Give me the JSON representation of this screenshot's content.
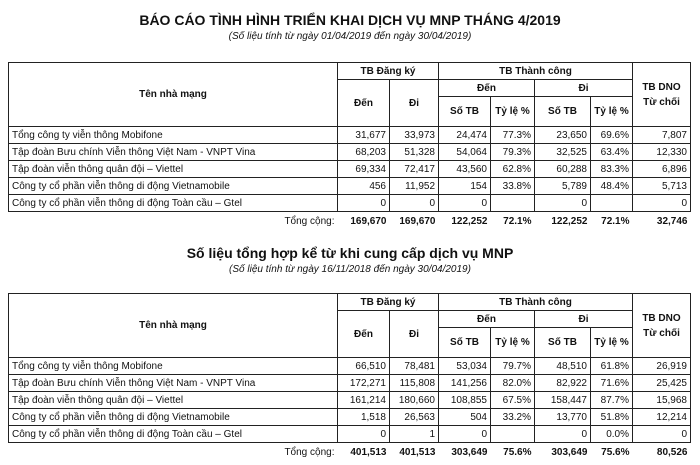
{
  "header_labels": {
    "name": "Tên nhà mạng",
    "registered": "TB Đăng ký",
    "success": "TB Thành công",
    "in": "Đến",
    "out": "Đi",
    "count": "Số TB",
    "rate": "Tỷ lệ %",
    "dno": "TB DNO Từ chối",
    "total": "Tổng cộng:"
  },
  "reports": [
    {
      "title": "BÁO CÁO TÌNH HÌNH TRIỂN KHAI DỊCH VỤ MNP THÁNG 4/2019",
      "subtitle": "(Số liệu tính từ ngày 01/04/2019 đến ngày 30/04/2019)",
      "rows": [
        [
          "Tổng công ty viễn thông Mobifone",
          "31,677",
          "33,973",
          "24,474",
          "77.3%",
          "23,650",
          "69.6%",
          "7,807"
        ],
        [
          "Tập đoàn Bưu chính Viễn thông Việt Nam - VNPT Vina",
          "68,203",
          "51,328",
          "54,064",
          "79.3%",
          "32,525",
          "63.4%",
          "12,330"
        ],
        [
          "Tập đoàn viễn thông quân đội – Viettel",
          "69,334",
          "72,417",
          "43,560",
          "62.8%",
          "60,288",
          "83.3%",
          "6,896"
        ],
        [
          "Công ty cổ phần viễn thông di động Vietnamobile",
          "456",
          "11,952",
          "154",
          "33.8%",
          "5,789",
          "48.4%",
          "5,713"
        ],
        [
          "Công ty cổ phần viễn thông di động Toàn cầu – Gtel",
          "0",
          "0",
          "0",
          "",
          "0",
          "",
          "0"
        ]
      ],
      "totals": [
        "169,670",
        "169,670",
        "122,252",
        "72.1%",
        "122,252",
        "72.1%",
        "32,746"
      ]
    },
    {
      "title": "Số liệu tổng hợp kể từ khi cung cấp dịch vụ MNP",
      "subtitle": "(Số liệu tính từ ngày 16/11/2018 đến ngày 30/04/2019)",
      "rows": [
        [
          "Tổng công ty viễn thông Mobifone",
          "66,510",
          "78,481",
          "53,034",
          "79.7%",
          "48,510",
          "61.8%",
          "26,919"
        ],
        [
          "Tập đoàn Bưu chính Viễn thông Việt Nam - VNPT Vina",
          "172,271",
          "115,808",
          "141,256",
          "82.0%",
          "82,922",
          "71.6%",
          "25,425"
        ],
        [
          "Tập đoàn viễn thông quân đội – Viettel",
          "161,214",
          "180,660",
          "108,855",
          "67.5%",
          "158,447",
          "87.7%",
          "15,968"
        ],
        [
          "Công ty cổ phần viễn thông di động Vietnamobile",
          "1,518",
          "26,563",
          "504",
          "33.2%",
          "13,770",
          "51.8%",
          "12,214"
        ],
        [
          "Công ty cổ phần viễn thông di động Toàn cầu – Gtel",
          "0",
          "1",
          "0",
          "",
          "0",
          "0.0%",
          "0"
        ]
      ],
      "totals": [
        "401,513",
        "401,513",
        "303,649",
        "75.6%",
        "303,649",
        "75.6%",
        "80,526"
      ]
    }
  ]
}
